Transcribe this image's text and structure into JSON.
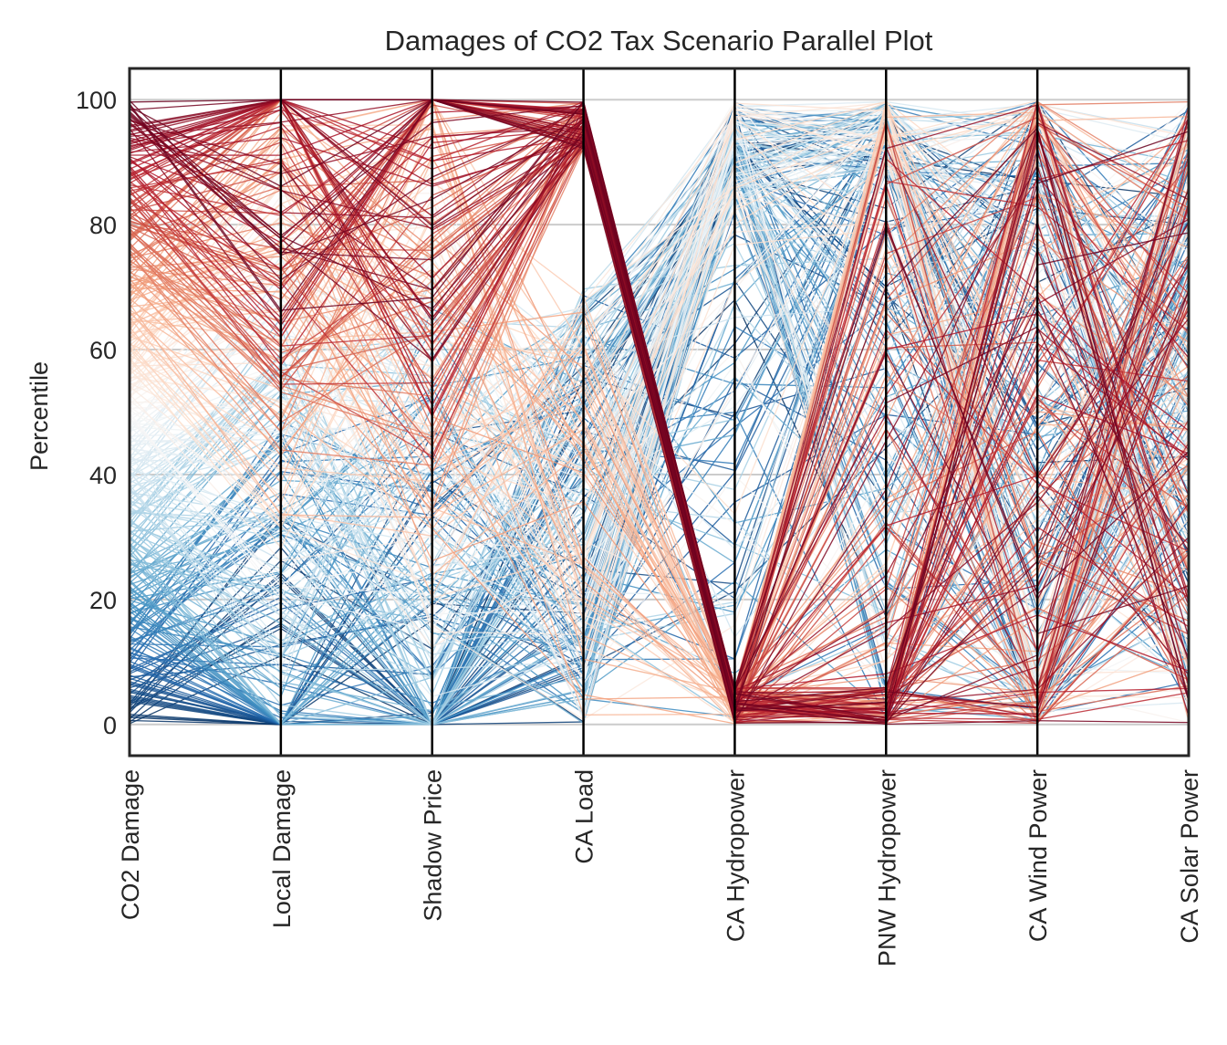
{
  "chart_data": {
    "type": "parallel-coordinates",
    "title": "Damages of CO2 Tax Scenario Parallel Plot",
    "ylabel": "Percentile",
    "ylim": [
      -5,
      105
    ],
    "yticks": [
      "0",
      "20",
      "40",
      "60",
      "80",
      "100"
    ],
    "ytick_values": [
      0,
      20,
      40,
      60,
      80,
      100
    ],
    "axes": [
      "CO2 Damage",
      "Local Damage",
      "Shadow Price",
      "CA Load",
      "CA Hydropower",
      "PNW Hydropower",
      "CA Wind Power",
      "CA Solar Power"
    ],
    "color_by": "CO2 Damage",
    "colormap": "RdBu_r",
    "colormap_stops": [
      "#053061",
      "#2166ac",
      "#4393c3",
      "#92c5de",
      "#d1e5f0",
      "#f7f7f7",
      "#fddbc7",
      "#f4a582",
      "#d6604d",
      "#b2182b",
      "#67001f"
    ],
    "grid": "horizontal",
    "line_count": 400
  }
}
